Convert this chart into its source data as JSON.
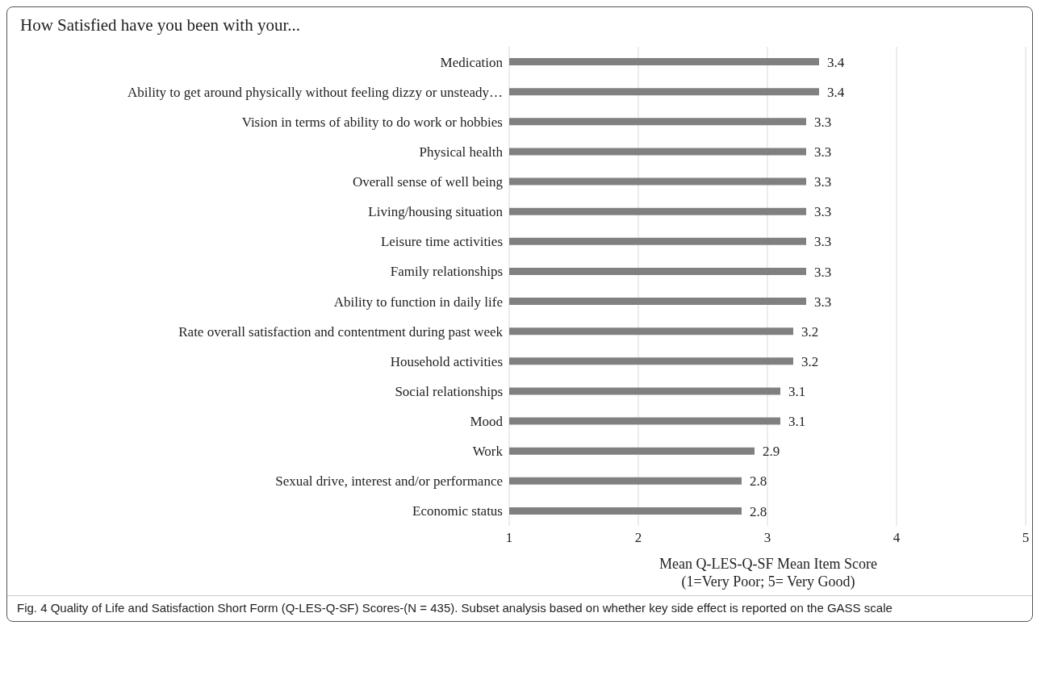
{
  "chart_data": {
    "type": "bar",
    "orientation": "horizontal",
    "title": "How Satisfied have you been with your...",
    "xlabel": "Mean Q-LES-Q-SF Mean Item Score\n(1=Very Poor; 5= Very Good)",
    "categories": [
      "Medication",
      "Ability to get around physically without feeling dizzy or unsteady…",
      "Vision in terms of ability to do work or hobbies",
      "Physical health",
      "Overall sense of well being",
      "Living/housing situation",
      "Leisure time activities",
      "Family relationships",
      "Ability to function in daily life",
      "Rate overall satisfaction and contentment during past week",
      "Household activities",
      "Social relationships",
      "Mood",
      "Work",
      "Sexual drive, interest and/or performance",
      "Economic status"
    ],
    "values": [
      3.4,
      3.4,
      3.3,
      3.3,
      3.3,
      3.3,
      3.3,
      3.3,
      3.3,
      3.2,
      3.2,
      3.1,
      3.1,
      2.9,
      2.8,
      2.8
    ],
    "color": "#808080",
    "xlim": [
      1,
      5
    ],
    "xticks": [
      1,
      2,
      3,
      4,
      5
    ],
    "grid": "x",
    "data_labels": true,
    "annotations": [
      "Fig. 4 Quality of Life and Satisfaction Short Form (Q-LES-Q-SF) Scores-(N = 435). Subset analysis based on whether key side effect is reported on the GASS scale"
    ]
  }
}
